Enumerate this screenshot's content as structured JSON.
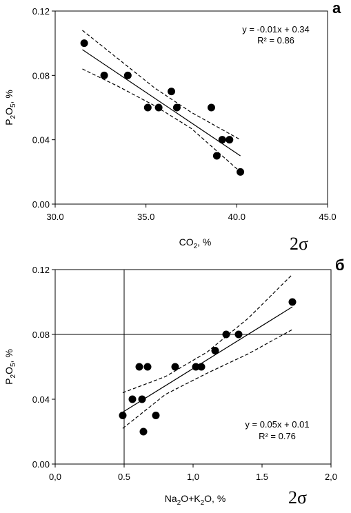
{
  "chart_data": [
    {
      "type": "scatter",
      "panel_label": "а",
      "sigma_label": "2σ",
      "xlabel": "CO2, %",
      "ylabel": "P2O5, %",
      "xlim": [
        30.0,
        45.0
      ],
      "ylim": [
        0.0,
        0.12
      ],
      "x_ticks": [
        "30.0",
        "35.0",
        "40.0",
        "45.0"
      ],
      "y_ticks": [
        "0.00",
        "0.04",
        "0.08",
        "0.12"
      ],
      "equation": "y = -0.01x + 0.34",
      "r2": "R² = 0.86",
      "points": [
        {
          "x": 31.6,
          "y": 0.1
        },
        {
          "x": 32.7,
          "y": 0.08
        },
        {
          "x": 34.0,
          "y": 0.08
        },
        {
          "x": 35.1,
          "y": 0.06
        },
        {
          "x": 35.7,
          "y": 0.06
        },
        {
          "x": 36.4,
          "y": 0.07
        },
        {
          "x": 36.7,
          "y": 0.06
        },
        {
          "x": 38.6,
          "y": 0.06
        },
        {
          "x": 39.2,
          "y": 0.04
        },
        {
          "x": 39.6,
          "y": 0.04
        },
        {
          "x": 38.9,
          "y": 0.03
        },
        {
          "x": 40.2,
          "y": 0.02
        }
      ],
      "fit_line": {
        "x": [
          31.5,
          40.2
        ],
        "y": [
          0.096,
          0.03
        ]
      },
      "upper_band": {
        "x": [
          31.5,
          33.5,
          35.5,
          37.5,
          40.2
        ],
        "y": [
          0.108,
          0.09,
          0.072,
          0.057,
          0.04
        ]
      },
      "lower_band": {
        "x": [
          31.5,
          33.5,
          35.5,
          37.5,
          40.2
        ],
        "y": [
          0.084,
          0.073,
          0.061,
          0.047,
          0.02
        ]
      },
      "gridlines": {
        "x": [],
        "y": []
      }
    },
    {
      "type": "scatter",
      "panel_label": "б",
      "sigma_label": "2σ",
      "xlabel": "Na2O+K2O, %",
      "ylabel": "P2O5, %",
      "xlim": [
        0.0,
        2.0
      ],
      "ylim": [
        0.0,
        0.12
      ],
      "x_ticks": [
        "0,0",
        "0.5",
        "1,0",
        "1.5",
        "2,0"
      ],
      "y_ticks": [
        "0.00",
        "0.04",
        "0.08",
        "0.12"
      ],
      "equation": "y = 0.05x + 0.01",
      "r2": "R² = 0.76",
      "points": [
        {
          "x": 0.49,
          "y": 0.03
        },
        {
          "x": 0.56,
          "y": 0.04
        },
        {
          "x": 0.61,
          "y": 0.06
        },
        {
          "x": 0.63,
          "y": 0.04
        },
        {
          "x": 0.64,
          "y": 0.02
        },
        {
          "x": 0.67,
          "y": 0.06
        },
        {
          "x": 0.73,
          "y": 0.03
        },
        {
          "x": 0.87,
          "y": 0.06
        },
        {
          "x": 1.02,
          "y": 0.06
        },
        {
          "x": 1.06,
          "y": 0.06
        },
        {
          "x": 1.16,
          "y": 0.07
        },
        {
          "x": 1.24,
          "y": 0.08
        },
        {
          "x": 1.33,
          "y": 0.08
        },
        {
          "x": 1.72,
          "y": 0.1
        }
      ],
      "fit_line": {
        "x": [
          0.49,
          1.72
        ],
        "y": [
          0.032,
          0.097
        ]
      },
      "upper_band": {
        "x": [
          0.49,
          0.8,
          1.1,
          1.4,
          1.72
        ],
        "y": [
          0.044,
          0.054,
          0.069,
          0.09,
          0.117
        ]
      },
      "lower_band": {
        "x": [
          0.49,
          0.8,
          1.1,
          1.4,
          1.72
        ],
        "y": [
          0.022,
          0.043,
          0.056,
          0.068,
          0.083
        ]
      },
      "gridlines": {
        "x": [
          0.5
        ],
        "y": [
          0.08
        ]
      }
    }
  ]
}
